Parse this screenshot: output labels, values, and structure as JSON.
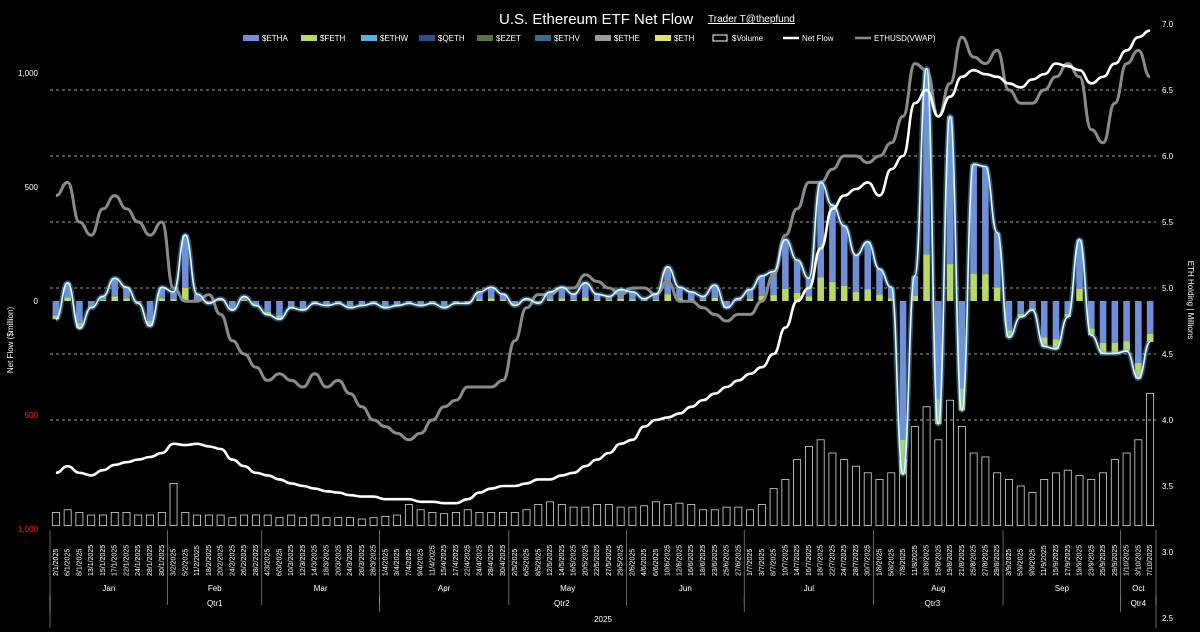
{
  "title": "U.S. Ethereum ETF Net Flow",
  "credit": "Trader T@thepfund",
  "legend": [
    {
      "label": "$ETHA",
      "color": "#6f8fd8",
      "kind": "bar"
    },
    {
      "label": "$FETH",
      "color": "#b8d86a",
      "kind": "bar"
    },
    {
      "label": "$ETHW",
      "color": "#5fb0e0",
      "kind": "bar"
    },
    {
      "label": "$QETH",
      "color": "#2f4f88",
      "kind": "bar"
    },
    {
      "label": "$EZET",
      "color": "#5f6f3f",
      "kind": "bar"
    },
    {
      "label": "$ETHV",
      "color": "#3a6a90",
      "kind": "bar"
    },
    {
      "label": "$ETHE",
      "color": "#9a9a9a",
      "kind": "bar"
    },
    {
      "label": "$ETH",
      "color": "#e0e070",
      "kind": "bar"
    },
    {
      "label": "$Volume",
      "color": "#ffffff",
      "kind": "outline"
    },
    {
      "label": "Net Flow",
      "color": "#ffffff",
      "kind": "line"
    },
    {
      "label": "ETHUSD(VWAP)",
      "color": "#8a8a8a",
      "kind": "line"
    }
  ],
  "chart_data": {
    "type": "bar",
    "title": "U.S. Ethereum ETF Net Flow",
    "ylabel": "Net Flow ($million)",
    "y2label": "ETH Holding | Millions",
    "ylim": [
      -1000,
      1000
    ],
    "y2lim": [
      2.5,
      7.0
    ],
    "left_ticks": [
      {
        "text": "1,000",
        "value": 1000,
        "negative": false
      },
      {
        "text": "500",
        "value": 500,
        "negative": false
      },
      {
        "text": "0",
        "value": 0,
        "negative": false
      },
      {
        "text": "500",
        "value": -500,
        "negative": true
      },
      {
        "text": "1,000",
        "value": -1000,
        "negative": true
      }
    ],
    "right_ticks": [
      "2.5",
      "3.0",
      "3.5",
      "4.0",
      "4.5",
      "5.0",
      "5.5",
      "6.0",
      "6.5",
      "7.0"
    ],
    "grid": "dashed horizontal",
    "legend_position": "top",
    "x_dates": [
      "2/1/2025",
      "6/1/2025",
      "8/1/2025",
      "13/1/2025",
      "15/1/2025",
      "17/1/2025",
      "22/1/2025",
      "24/1/2025",
      "28/1/2025",
      "30/1/2025",
      "3/2/2025",
      "5/2/2025",
      "11/2/2025",
      "18/2/2025",
      "20/2/2025",
      "24/2/2025",
      "26/2/2025",
      "28/2/2025",
      "4/3/2025",
      "6/3/2025",
      "10/3/2025",
      "12/3/2025",
      "14/3/2025",
      "18/3/2025",
      "20/3/2025",
      "24/3/2025",
      "26/3/2025",
      "28/3/2025",
      "1/4/2025",
      "3/4/2025",
      "7/4/2025",
      "9/4/2025",
      "11/4/2025",
      "15/4/2025",
      "17/4/2025",
      "22/4/2025",
      "24/4/2025",
      "28/4/2025",
      "30/4/2025",
      "2/5/2025",
      "6/5/2025",
      "8/5/2025",
      "12/5/2025",
      "14/5/2025",
      "16/5/2025",
      "20/5/2025",
      "22/5/2025",
      "27/5/2025",
      "29/5/2025",
      "2/6/2025",
      "4/6/2025",
      "6/6/2025",
      "10/6/2025",
      "12/6/2025",
      "16/6/2025",
      "18/6/2025",
      "23/6/2025",
      "25/6/2025",
      "27/6/2025",
      "1/7/2025",
      "3/7/2025",
      "8/7/2025",
      "10/7/2025",
      "14/7/2025",
      "16/7/2025",
      "18/7/2025",
      "22/7/2025",
      "24/7/2025",
      "28/7/2025",
      "30/7/2025",
      "1/8/2025",
      "5/8/2025",
      "7/8/2025",
      "11/8/2025",
      "13/8/2025",
      "15/8/2025",
      "19/8/2025",
      "21/8/2025",
      "25/8/2025",
      "27/8/2025",
      "29/8/2025",
      "3/9/2025",
      "5/9/2025",
      "9/9/2025",
      "11/9/2025",
      "15/9/2025",
      "17/9/2025",
      "19/9/2025",
      "23/9/2025",
      "25/9/2025",
      "29/9/2025",
      "1/10/2025",
      "3/10/2025",
      "7/10/2025"
    ],
    "months": [
      "Jan",
      "Feb",
      "Mar",
      "Apr",
      "May",
      "Jun",
      "Jul",
      "Aug",
      "Sep",
      "Oct"
    ],
    "quarters": [
      "Qtr1",
      "Qtr2",
      "Qtr3",
      "Qtr4"
    ],
    "year": "2025",
    "series": [
      {
        "name": "Net Flow",
        "axis": "left",
        "values": [
          -80,
          80,
          -120,
          -30,
          20,
          100,
          60,
          -10,
          -110,
          60,
          40,
          290,
          30,
          -10,
          10,
          -40,
          20,
          -20,
          -60,
          -80,
          -30,
          -40,
          -10,
          -20,
          -10,
          -30,
          -20,
          -10,
          -30,
          -20,
          -10,
          -20,
          -10,
          -30,
          -10,
          -10,
          40,
          60,
          30,
          -20,
          10,
          -10,
          40,
          60,
          30,
          80,
          30,
          20,
          50,
          40,
          10,
          30,
          150,
          60,
          40,
          20,
          70,
          -30,
          10,
          50,
          110,
          130,
          270,
          180,
          100,
          520,
          420,
          330,
          200,
          260,
          140,
          60,
          -760,
          110,
          1020,
          -540,
          810,
          -480,
          600,
          590,
          300,
          -160,
          -70,
          -40,
          -200,
          -210,
          -70,
          270,
          -150,
          -230,
          -230,
          -220,
          -340,
          -180
        ]
      },
      {
        "name": "ETH Holding | Millions",
        "axis": "right",
        "values": [
          3.6,
          3.65,
          3.6,
          3.58,
          3.62,
          3.66,
          3.68,
          3.7,
          3.72,
          3.75,
          3.82,
          3.81,
          3.82,
          3.8,
          3.78,
          3.7,
          3.65,
          3.6,
          3.58,
          3.55,
          3.52,
          3.5,
          3.48,
          3.46,
          3.45,
          3.43,
          3.42,
          3.42,
          3.4,
          3.4,
          3.4,
          3.38,
          3.38,
          3.37,
          3.37,
          3.4,
          3.45,
          3.48,
          3.5,
          3.5,
          3.52,
          3.55,
          3.55,
          3.58,
          3.6,
          3.65,
          3.7,
          3.75,
          3.82,
          3.85,
          3.95,
          4.0,
          4.02,
          4.05,
          4.1,
          4.15,
          4.2,
          4.25,
          4.3,
          4.35,
          4.4,
          4.5,
          4.7,
          4.9,
          5.0,
          5.3,
          5.6,
          5.7,
          5.75,
          5.8,
          5.7,
          5.9,
          6.0,
          6.4,
          6.5,
          6.3,
          6.45,
          6.6,
          6.65,
          6.62,
          6.6,
          6.55,
          6.52,
          6.58,
          6.62,
          6.7,
          6.68,
          6.65,
          6.55,
          6.6,
          6.7,
          6.8,
          6.9,
          6.95
        ]
      },
      {
        "name": "ETHUSD(VWAP)",
        "axis": "right",
        "values": [
          5.7,
          5.8,
          5.5,
          5.4,
          5.6,
          5.7,
          5.6,
          5.5,
          5.4,
          5.5,
          5.0,
          4.9,
          4.9,
          4.95,
          4.8,
          4.6,
          4.5,
          4.4,
          4.3,
          4.35,
          4.3,
          4.25,
          4.35,
          4.25,
          4.3,
          4.2,
          4.1,
          4.0,
          3.95,
          3.9,
          3.85,
          3.9,
          4.0,
          4.1,
          4.15,
          4.25,
          4.25,
          4.25,
          4.3,
          4.6,
          4.85,
          4.95,
          4.95,
          5.0,
          5.0,
          5.1,
          5.05,
          5.0,
          4.95,
          5.0,
          5.0,
          4.95,
          5.05,
          4.9,
          4.9,
          4.85,
          4.8,
          4.75,
          4.8,
          4.8,
          4.9,
          5.1,
          5.4,
          5.6,
          5.8,
          5.8,
          5.9,
          6.0,
          6.0,
          5.95,
          6.0,
          6.1,
          6.3,
          6.7,
          6.65,
          6.3,
          6.55,
          6.9,
          6.75,
          6.7,
          6.8,
          6.5,
          6.4,
          6.4,
          6.5,
          6.6,
          6.7,
          6.6,
          6.2,
          6.1,
          6.4,
          6.7,
          6.8,
          6.6
        ]
      },
      {
        "name": "$Volume",
        "axis": "right",
        "values": [
          3.3,
          3.32,
          3.3,
          3.28,
          3.28,
          3.3,
          3.3,
          3.28,
          3.28,
          3.3,
          3.52,
          3.3,
          3.28,
          3.28,
          3.28,
          3.26,
          3.28,
          3.28,
          3.28,
          3.26,
          3.28,
          3.26,
          3.28,
          3.26,
          3.26,
          3.26,
          3.25,
          3.26,
          3.27,
          3.28,
          3.36,
          3.32,
          3.3,
          3.29,
          3.3,
          3.32,
          3.3,
          3.3,
          3.3,
          3.3,
          3.32,
          3.36,
          3.38,
          3.36,
          3.34,
          3.34,
          3.36,
          3.36,
          3.34,
          3.34,
          3.35,
          3.38,
          3.36,
          3.37,
          3.36,
          3.32,
          3.32,
          3.34,
          3.34,
          3.32,
          3.36,
          3.48,
          3.55,
          3.7,
          3.8,
          3.85,
          3.75,
          3.7,
          3.65,
          3.6,
          3.55,
          3.6,
          3.7,
          3.95,
          4.1,
          3.85,
          4.15,
          3.95,
          3.75,
          3.72,
          3.6,
          3.55,
          3.5,
          3.45,
          3.55,
          3.6,
          3.62,
          3.58,
          3.55,
          3.6,
          3.7,
          3.75,
          3.85,
          4.2
        ]
      }
    ]
  }
}
